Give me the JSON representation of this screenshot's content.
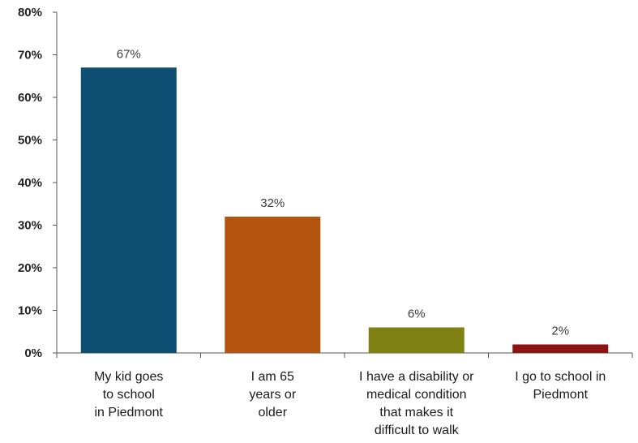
{
  "chart_data": {
    "type": "bar",
    "categories": [
      "My kid goes to school in Piedmont",
      "I am 65 years or older",
      "I have a disability or medical condition that makes it difficult to walk",
      "I go to school in Piedmont"
    ],
    "category_lines": [
      [
        "My kid goes",
        "to school",
        "in Piedmont"
      ],
      [
        "I am 65",
        "years or",
        "older"
      ],
      [
        "I have a disability or",
        "medical condition",
        "that makes it",
        "difficult to walk"
      ],
      [
        "I go to school in",
        "Piedmont"
      ]
    ],
    "values": [
      67,
      32,
      6,
      2
    ],
    "data_labels": [
      "67%",
      "32%",
      "6%",
      "2%"
    ],
    "bar_colors": [
      "#0e4f73",
      "#b5540f",
      "#7f8212",
      "#8e1313"
    ],
    "yticks": [
      0,
      10,
      20,
      30,
      40,
      50,
      60,
      70,
      80
    ],
    "ytick_labels": [
      "0%",
      "10%",
      "20%",
      "30%",
      "40%",
      "50%",
      "60%",
      "70%",
      "80%"
    ],
    "ylim": [
      0,
      80
    ],
    "title": "",
    "xlabel": "",
    "ylabel": "",
    "grid": false,
    "legend": "none"
  }
}
